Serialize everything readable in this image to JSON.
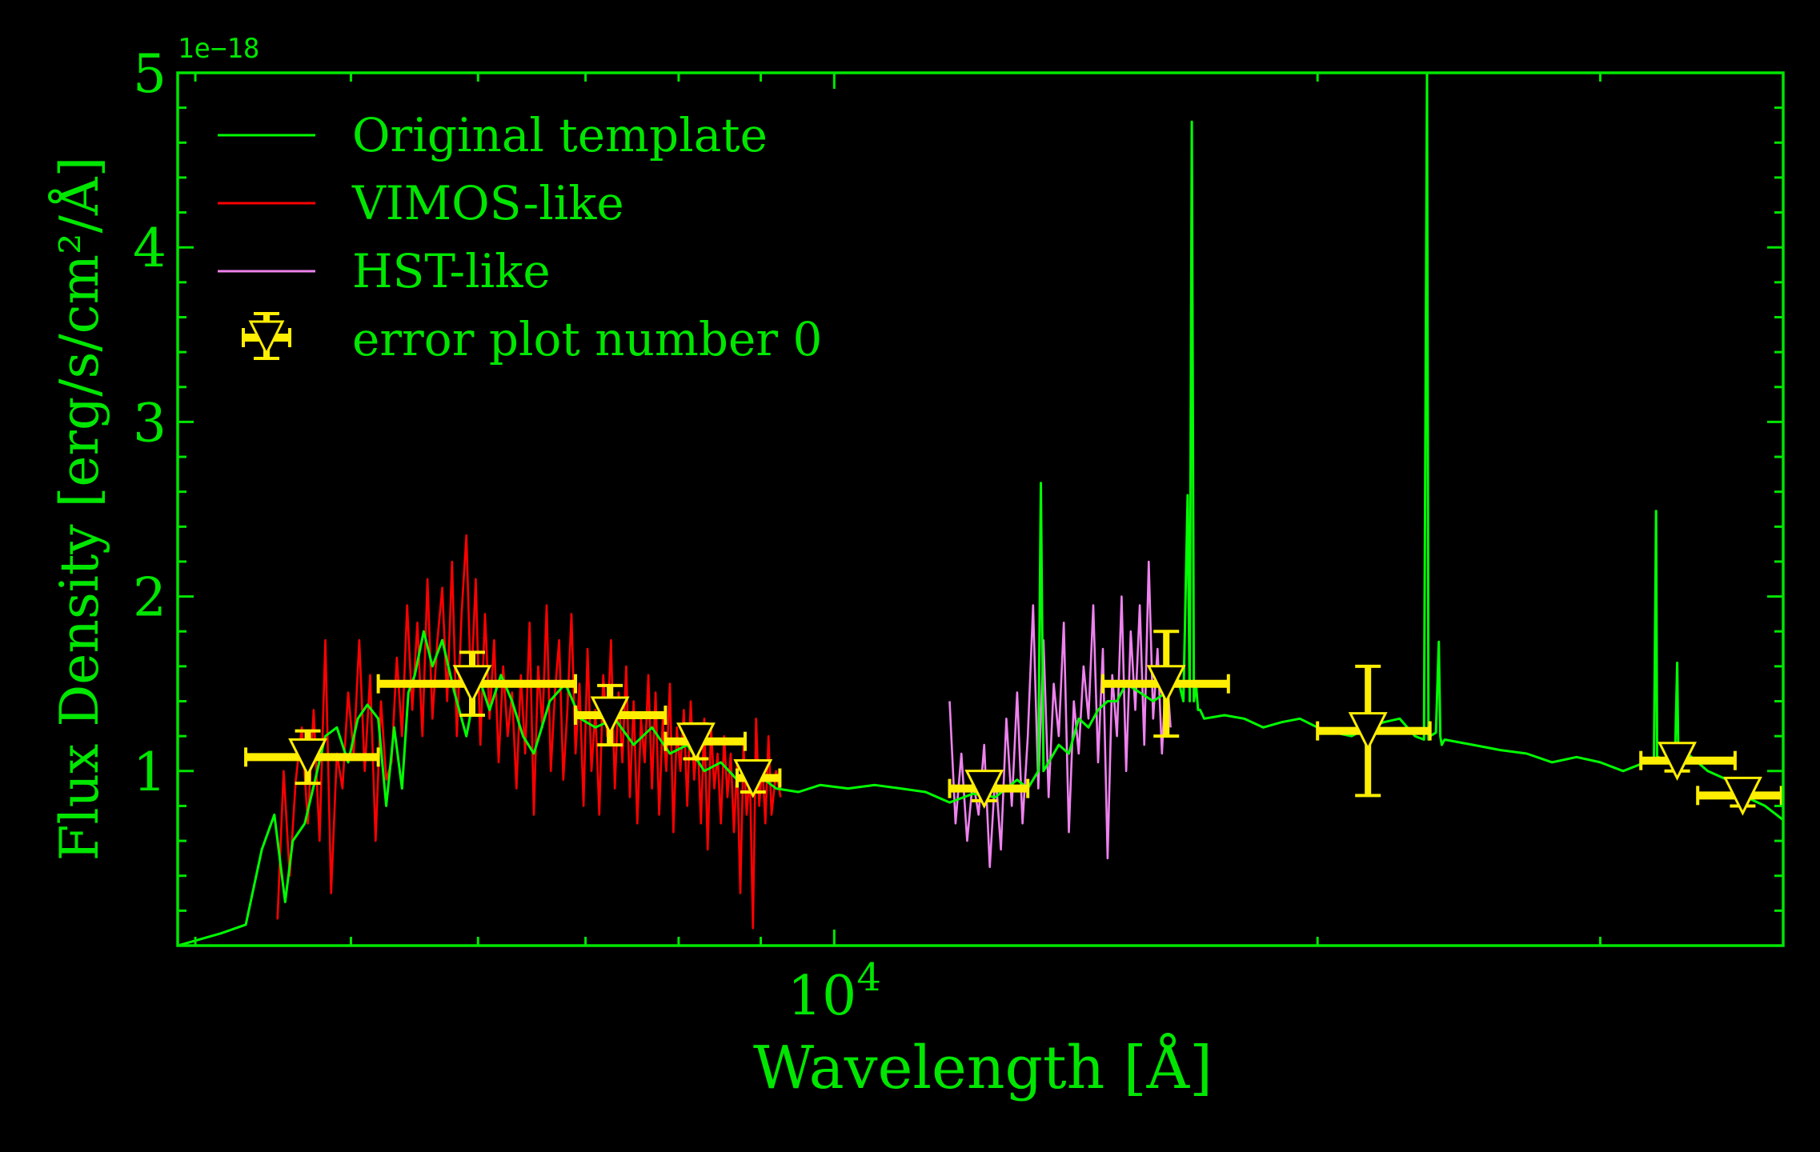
{
  "chart_data": {
    "type": "line",
    "xlabel": "Wavelength [Å]",
    "ylabel": "Flux Density [erg/s/cm²/Å]",
    "y_offset_label": "1e−18",
    "x_scale": "log",
    "xlim": [
      3900,
      39000
    ],
    "ylim": [
      0,
      5e-18
    ],
    "y_multiplier": 1e-18,
    "yticks": [
      1,
      2,
      3,
      4,
      5
    ],
    "xtick_major": {
      "value": 10000,
      "label_base": "10",
      "label_exp": "4"
    },
    "xtick_minor": [
      4000,
      5000,
      6000,
      7000,
      8000,
      9000,
      20000,
      30000
    ],
    "grid": false,
    "legend_position": "top-left",
    "colors": {
      "background": "#000000",
      "axes": "#00e600",
      "template": "#00ff00",
      "vimos": "#ff0000",
      "hst": "#ee82ee",
      "errorbar": "#ffee00"
    },
    "legend": [
      {
        "label": "Original template",
        "kind": "line",
        "color": "#00ff00"
      },
      {
        "label": "VIMOS-like",
        "kind": "line",
        "color": "#ff0000"
      },
      {
        "label": "HST-like",
        "kind": "line",
        "color": "#ee82ee"
      },
      {
        "label": "error plot number 0",
        "kind": "errorbar",
        "color": "#ffee00"
      }
    ],
    "series": [
      {
        "name": "Original template",
        "color": "#00ff00",
        "x": [
          3900,
          4150,
          4300,
          4400,
          4480,
          4550,
          4600,
          4680,
          4750,
          4820,
          4900,
          4980,
          5050,
          5120,
          5200,
          5260,
          5320,
          5380,
          5430,
          5480,
          5550,
          5620,
          5700,
          5800,
          5900,
          6000,
          6100,
          6200,
          6300,
          6400,
          6500,
          6650,
          6800,
          6950,
          7100,
          7300,
          7500,
          7700,
          7900,
          8100,
          8300,
          8500,
          8700,
          8900,
          9200,
          9500,
          9800,
          10200,
          10600,
          11000,
          11400,
          11800,
          12200,
          12600,
          13000,
          13200,
          13400,
          13450,
          13500,
          13600,
          13800,
          14000,
          14200,
          14400,
          14600,
          14800,
          15000,
          15200,
          15500,
          15800,
          16100,
          16300,
          16500,
          16600,
          16650,
          16700,
          16750,
          16800,
          16850,
          16900,
          17000,
          17500,
          18000,
          18500,
          19000,
          19500,
          20000,
          20500,
          21000,
          21500,
          22000,
          22500,
          23000,
          23300,
          23400,
          23450,
          23500,
          23700,
          23800,
          23850,
          23900,
          24000,
          25000,
          26000,
          27000,
          28000,
          29000,
          30000,
          31000,
          32000,
          32400,
          32500,
          32550,
          32600,
          33000,
          33400,
          33500,
          33550,
          33600,
          34000,
          35000,
          36000,
          37000,
          38000,
          39000
        ],
        "values": [
          0.0,
          0.07,
          0.12,
          0.55,
          0.75,
          0.25,
          0.6,
          0.7,
          0.95,
          1.2,
          1.25,
          1.05,
          1.3,
          1.38,
          1.3,
          0.8,
          1.25,
          0.9,
          1.45,
          1.55,
          1.8,
          1.6,
          1.75,
          1.45,
          1.2,
          1.55,
          1.35,
          1.55,
          1.4,
          1.2,
          1.1,
          1.4,
          1.5,
          1.3,
          1.25,
          1.3,
          1.15,
          1.25,
          1.1,
          1.15,
          1.0,
          1.05,
          0.95,
          1.0,
          0.9,
          0.88,
          0.92,
          0.9,
          0.92,
          0.9,
          0.88,
          0.82,
          0.87,
          0.85,
          0.95,
          0.9,
          1.0,
          2.65,
          1.0,
          1.05,
          1.15,
          1.1,
          1.3,
          1.25,
          1.35,
          1.4,
          1.4,
          1.5,
          1.45,
          1.4,
          1.45,
          1.6,
          1.4,
          2.58,
          1.4,
          4.72,
          1.4,
          1.5,
          1.35,
          1.35,
          1.3,
          1.32,
          1.3,
          1.25,
          1.28,
          1.3,
          1.25,
          1.22,
          1.2,
          1.25,
          1.28,
          1.3,
          1.2,
          1.18,
          5.0,
          1.18,
          1.2,
          1.22,
          1.74,
          1.2,
          1.15,
          1.18,
          1.15,
          1.12,
          1.1,
          1.05,
          1.08,
          1.05,
          1.0,
          1.05,
          1.05,
          2.49,
          1.05,
          1.08,
          1.05,
          1.1,
          1.62,
          1.1,
          1.08,
          1.1,
          1.0,
          0.95,
          0.85,
          0.8,
          0.72
        ]
      },
      {
        "name": "VIMOS-like",
        "color": "#ff0000",
        "x": [
          4500,
          4540,
          4580,
          4620,
          4660,
          4700,
          4740,
          4780,
          4820,
          4860,
          4900,
          4940,
          4980,
          5020,
          5060,
          5100,
          5140,
          5180,
          5220,
          5260,
          5300,
          5340,
          5380,
          5420,
          5460,
          5500,
          5540,
          5580,
          5620,
          5660,
          5700,
          5740,
          5780,
          5820,
          5860,
          5900,
          5940,
          5980,
          6020,
          6060,
          6100,
          6140,
          6180,
          6220,
          6260,
          6300,
          6340,
          6380,
          6420,
          6460,
          6500,
          6540,
          6580,
          6620,
          6660,
          6700,
          6740,
          6780,
          6820,
          6860,
          6900,
          6940,
          6980,
          7020,
          7060,
          7100,
          7140,
          7180,
          7220,
          7260,
          7300,
          7340,
          7380,
          7420,
          7460,
          7500,
          7540,
          7580,
          7620,
          7660,
          7700,
          7740,
          7780,
          7820,
          7860,
          7900,
          7940,
          7980,
          8020,
          8060,
          8100,
          8140,
          8180,
          8220,
          8260,
          8300,
          8340,
          8380,
          8420,
          8460,
          8500,
          8540,
          8580,
          8620,
          8660,
          8700,
          8740,
          8780,
          8820,
          8860,
          8900,
          8940,
          8980,
          9020,
          9060,
          9100,
          9140,
          9200,
          9260
        ],
        "values": [
          0.15,
          1.0,
          0.4,
          0.95,
          1.25,
          0.7,
          1.35,
          0.6,
          1.75,
          0.3,
          1.1,
          0.9,
          1.45,
          1.1,
          1.75,
          1.0,
          1.55,
          0.6,
          1.4,
          0.95,
          1.05,
          1.65,
          1.2,
          1.95,
          1.35,
          1.85,
          1.2,
          2.1,
          1.3,
          1.75,
          2.05,
          1.4,
          2.2,
          1.2,
          1.9,
          2.35,
          1.45,
          2.1,
          1.15,
          1.9,
          1.3,
          1.75,
          1.05,
          1.6,
          1.2,
          1.45,
          0.9,
          1.55,
          1.1,
          1.85,
          0.75,
          1.6,
          1.25,
          1.95,
          1.0,
          1.45,
          1.75,
          0.95,
          1.35,
          1.9,
          1.1,
          1.5,
          0.8,
          1.7,
          1.0,
          1.35,
          0.75,
          1.55,
          1.2,
          1.75,
          0.9,
          1.45,
          1.05,
          1.6,
          0.85,
          1.4,
          0.7,
          1.3,
          1.05,
          1.55,
          0.9,
          1.45,
          0.75,
          1.3,
          1.0,
          1.5,
          0.65,
          1.25,
          1.0,
          1.35,
          0.8,
          1.4,
          0.95,
          1.2,
          0.7,
          1.3,
          0.55,
          1.25,
          0.9,
          1.1,
          0.7,
          1.2,
          0.85,
          1.1,
          0.65,
          1.05,
          0.3,
          1.15,
          0.75,
          1.0,
          0.1,
          1.3,
          0.8,
          1.05,
          0.7,
          1.2,
          0.75,
          1.0,
          0.85
        ]
      },
      {
        "name": "HST-like",
        "color": "#ee82ee",
        "x": [
          11800,
          11900,
          12000,
          12100,
          12200,
          12300,
          12400,
          12500,
          12600,
          12700,
          12800,
          12900,
          13000,
          13100,
          13200,
          13300,
          13400,
          13500,
          13600,
          13700,
          13800,
          13900,
          14000,
          14100,
          14200,
          14300,
          14400,
          14500,
          14600,
          14700,
          14800,
          14900,
          15000,
          15100,
          15200,
          15300,
          15400,
          15500,
          15600,
          15700,
          15800,
          15900,
          16000,
          16100,
          16200
        ],
        "values": [
          1.4,
          0.7,
          1.1,
          0.6,
          0.95,
          0.75,
          1.15,
          0.45,
          1.0,
          0.55,
          1.3,
          0.8,
          1.45,
          0.7,
          1.2,
          1.95,
          0.9,
          1.75,
          0.85,
          1.5,
          1.2,
          1.85,
          0.65,
          1.4,
          1.1,
          1.6,
          1.3,
          1.95,
          1.05,
          1.7,
          0.5,
          1.55,
          1.2,
          2.0,
          1.0,
          1.8,
          1.35,
          1.95,
          1.15,
          2.2,
          1.3,
          1.7,
          1.1,
          1.6,
          1.25
        ]
      }
    ],
    "errorbars": {
      "name": "error plot number 0",
      "color": "#ffee00",
      "marker": "triangle-down",
      "points": [
        {
          "x": 4700,
          "xmin": 4300,
          "xmax": 5200,
          "y": 1.08,
          "yerr": 0.15
        },
        {
          "x": 5950,
          "xmin": 5200,
          "xmax": 6900,
          "y": 1.5,
          "yerr": 0.18
        },
        {
          "x": 7250,
          "xmin": 6900,
          "xmax": 7850,
          "y": 1.32,
          "yerr": 0.17
        },
        {
          "x": 8200,
          "xmin": 7850,
          "xmax": 8800,
          "y": 1.17,
          "yerr": 0.1
        },
        {
          "x": 8900,
          "xmin": 8700,
          "xmax": 9250,
          "y": 0.96,
          "yerr": 0.08
        },
        {
          "x": 12400,
          "xmin": 11800,
          "xmax": 13200,
          "y": 0.9,
          "yerr": 0.07
        },
        {
          "x": 16100,
          "xmin": 14700,
          "xmax": 17600,
          "y": 1.5,
          "yerr": 0.3
        },
        {
          "x": 21500,
          "xmin": 20000,
          "xmax": 23500,
          "y": 1.23,
          "yerr": 0.37
        },
        {
          "x": 33500,
          "xmin": 31800,
          "xmax": 36400,
          "y": 1.06,
          "yerr": 0.06
        },
        {
          "x": 36800,
          "xmin": 34500,
          "xmax": 38900,
          "y": 0.86,
          "yerr": 0.06
        }
      ]
    }
  }
}
